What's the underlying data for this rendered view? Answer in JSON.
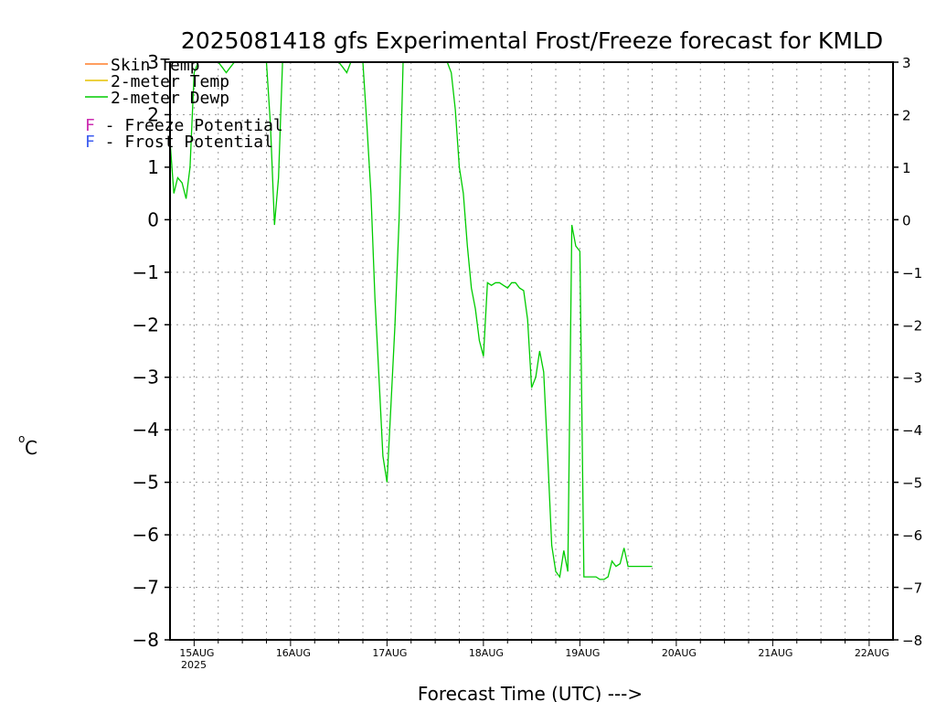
{
  "chart_data": {
    "type": "line",
    "title": "2025081418 gfs Experimental Frost/Freeze forecast for KMLD",
    "ylabel_unit": "o",
    "ylabel_main": "C",
    "xlabel": "Forecast Time (UTC) --->",
    "ylim": [
      -8,
      3
    ],
    "y_ticks": [
      -8,
      -7,
      -6,
      -5,
      -4,
      -3,
      -2,
      -1,
      0,
      1,
      2,
      3
    ],
    "y_tick_labels": [
      "−8",
      "−7",
      "−6",
      "−5",
      "−4",
      "−3",
      "−2",
      "−1",
      "0",
      "1",
      "2",
      "3"
    ],
    "x_tick_labels": [
      "15AUG",
      "16AUG",
      "17AUG",
      "18AUG",
      "19AUG",
      "20AUG",
      "21AUG",
      "22AUG"
    ],
    "x_year_label": "2025",
    "grid": true,
    "legend": [
      {
        "name": "Skin Temp",
        "color": "#ff7f2a"
      },
      {
        "name": "2-meter Temp",
        "color": "#e6c200"
      },
      {
        "name": "2-meter Dewp",
        "color": "#00cc00"
      }
    ],
    "potential_legend": [
      {
        "letter": "F",
        "text": " - Freeze Potential",
        "color": "#cc2bb0"
      },
      {
        "letter": "F",
        "text": " - Frost Potential",
        "color": "#3c5cf0"
      }
    ],
    "series": [
      {
        "name": "2-meter Dewp",
        "color": "#00cc00",
        "x": [
          14.75,
          14.79,
          14.83,
          14.875,
          14.917,
          14.958,
          15.0,
          15.042,
          15.083,
          15.125,
          15.167,
          15.208,
          15.25,
          15.292,
          15.333,
          15.375,
          15.417,
          15.458,
          15.5,
          15.542,
          15.583,
          15.625,
          15.667,
          15.708,
          15.75,
          15.792,
          15.833,
          15.875,
          15.917,
          15.958,
          16.0,
          16.042,
          16.083,
          16.125,
          16.167,
          16.208,
          16.25,
          16.292,
          16.333,
          16.375,
          16.417,
          16.458,
          16.5,
          16.542,
          16.583,
          16.625,
          16.667,
          16.708,
          16.75,
          16.792,
          16.833,
          16.875,
          16.917,
          16.958,
          17.0,
          17.042,
          17.083,
          17.125,
          17.167,
          17.208,
          17.25,
          17.292,
          17.333,
          17.375,
          17.417,
          17.458,
          17.5,
          17.542,
          17.583,
          17.625,
          17.667,
          17.708,
          17.75,
          17.792,
          17.833,
          17.875,
          17.917,
          17.958,
          18.0,
          18.042,
          18.083,
          18.125,
          18.167,
          18.208,
          18.25,
          18.292,
          18.333,
          18.375,
          18.417,
          18.458,
          18.5,
          18.542,
          18.583,
          18.625,
          18.667,
          18.708,
          18.75,
          18.792,
          18.833,
          18.875,
          18.917,
          18.958,
          19.0,
          19.042,
          19.083,
          19.125,
          19.167,
          19.208,
          19.25,
          19.292,
          19.333,
          19.375,
          19.417,
          19.458,
          19.5,
          19.542,
          19.583,
          19.625,
          19.667,
          19.708,
          19.75
        ],
        "values": [
          1.5,
          0.5,
          0.8,
          0.7,
          0.4,
          1.0,
          2.8,
          3.0,
          3.0,
          3.0,
          3.0,
          3.0,
          3.0,
          2.9,
          2.8,
          2.9,
          3.0,
          3.0,
          3.0,
          3.0,
          3.0,
          3.0,
          3.0,
          3.0,
          3.0,
          1.8,
          -0.1,
          0.8,
          3.0,
          3.0,
          3.0,
          3.0,
          3.0,
          3.0,
          3.0,
          3.0,
          3.0,
          3.0,
          3.0,
          3.0,
          3.0,
          3.0,
          3.0,
          2.9,
          2.8,
          3.0,
          3.0,
          3.0,
          3.0,
          1.8,
          0.5,
          -1.5,
          -3.0,
          -4.5,
          -5.0,
          -3.5,
          -2.0,
          0.0,
          3.0,
          3.0,
          3.0,
          3.0,
          3.0,
          3.0,
          3.0,
          3.0,
          3.0,
          3.0,
          3.0,
          3.0,
          2.8,
          2.1,
          1.0,
          0.5,
          -0.5,
          -1.3,
          -1.7,
          -2.3,
          -2.6,
          -1.2,
          -1.25,
          -1.2,
          -1.2,
          -1.25,
          -1.3,
          -1.2,
          -1.2,
          -1.3,
          -1.35,
          -1.9,
          -3.2,
          -3.0,
          -2.5,
          -2.9,
          -4.5,
          -6.2,
          -6.7,
          -6.8,
          -6.3,
          -6.7,
          -0.1,
          -0.5,
          -0.6,
          -6.8,
          -6.8,
          -6.8,
          -6.8,
          -6.85,
          -6.85,
          -6.8,
          -6.5,
          -6.6,
          -6.55,
          -6.25,
          -6.6,
          -6.6,
          -6.6,
          -6.6,
          -6.6,
          -6.6,
          -6.6
        ]
      }
    ]
  }
}
